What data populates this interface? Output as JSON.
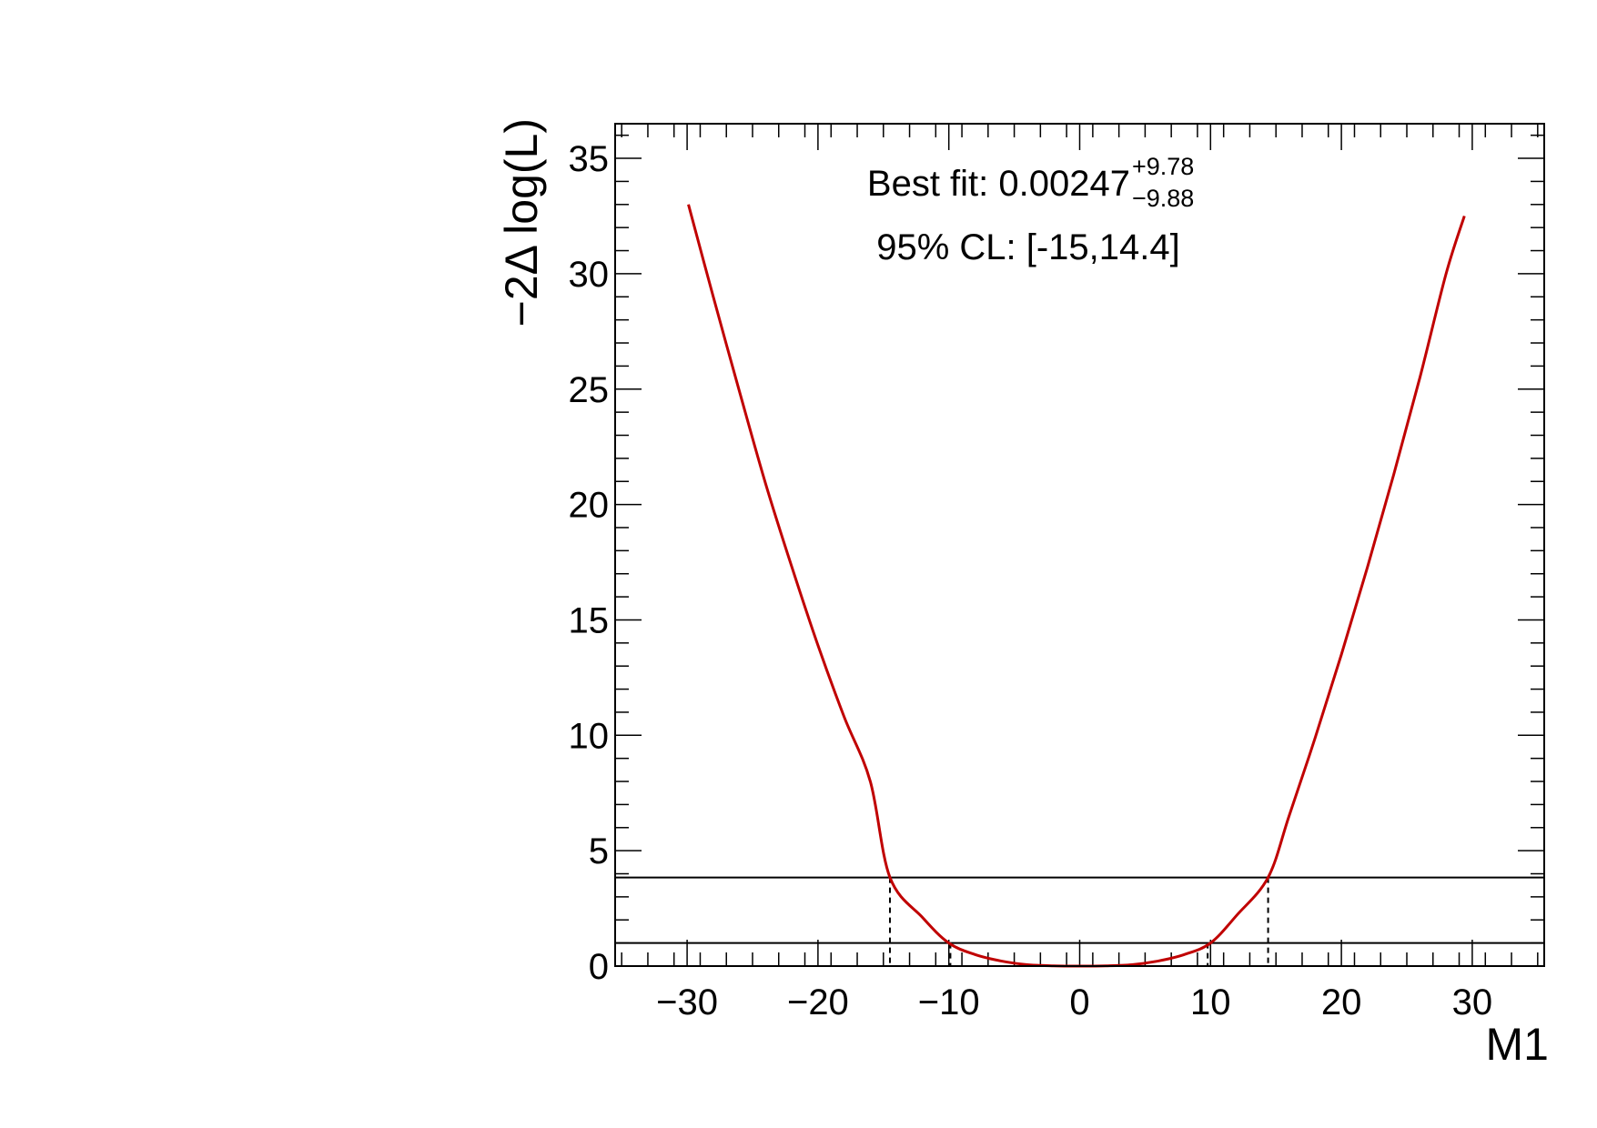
{
  "chart_data": {
    "type": "line",
    "xlabel": "M1",
    "ylabel": "−2Δ log(L)",
    "xlim": [
      -35.5,
      35.5
    ],
    "ylim": [
      0,
      36.5
    ],
    "x_ticks": [
      -30,
      -20,
      -10,
      0,
      10,
      20,
      30
    ],
    "x_tick_labels": [
      "−30",
      "−20",
      "−10",
      "0",
      "10",
      "20",
      "30"
    ],
    "y_ticks": [
      0,
      5,
      10,
      15,
      20,
      25,
      30,
      35
    ],
    "y_tick_labels": [
      "0",
      "5",
      "10",
      "15",
      "20",
      "25",
      "30",
      "35"
    ],
    "series": [
      {
        "color": "#c00000",
        "x": [
          -29.9,
          -28,
          -26,
          -24,
          -22,
          -20,
          -18,
          -16,
          -14.5,
          -12,
          -10,
          -8,
          -6,
          -4,
          -2,
          0,
          2,
          4,
          6,
          8,
          10,
          12,
          14.4,
          16,
          18,
          20,
          22,
          24,
          26,
          28,
          29.4
        ],
        "y": [
          33.0,
          29.0,
          24.9,
          20.9,
          17.3,
          13.9,
          10.8,
          8.0,
          3.84,
          2.1,
          1.0,
          0.5,
          0.22,
          0.06,
          0.01,
          0.0,
          0.01,
          0.06,
          0.22,
          0.5,
          1.0,
          2.2,
          3.84,
          6.5,
          9.9,
          13.5,
          17.3,
          21.3,
          25.5,
          30.0,
          32.5
        ]
      }
    ],
    "hlines": [
      1.0,
      3.84
    ],
    "vlines": [
      {
        "x": -14.5,
        "y": 3.84
      },
      {
        "x": -9.88,
        "y": 1.0
      },
      {
        "x": 9.78,
        "y": 1.0
      },
      {
        "x": 14.4,
        "y": 3.84
      }
    ],
    "annotations": {
      "best_fit_label": "Best fit: 0.00247",
      "best_fit_plus": "+9.78",
      "best_fit_minus": "−9.88",
      "cl_text": "95% CL: [-15,14.4]"
    },
    "grid": false,
    "legend": "none"
  }
}
